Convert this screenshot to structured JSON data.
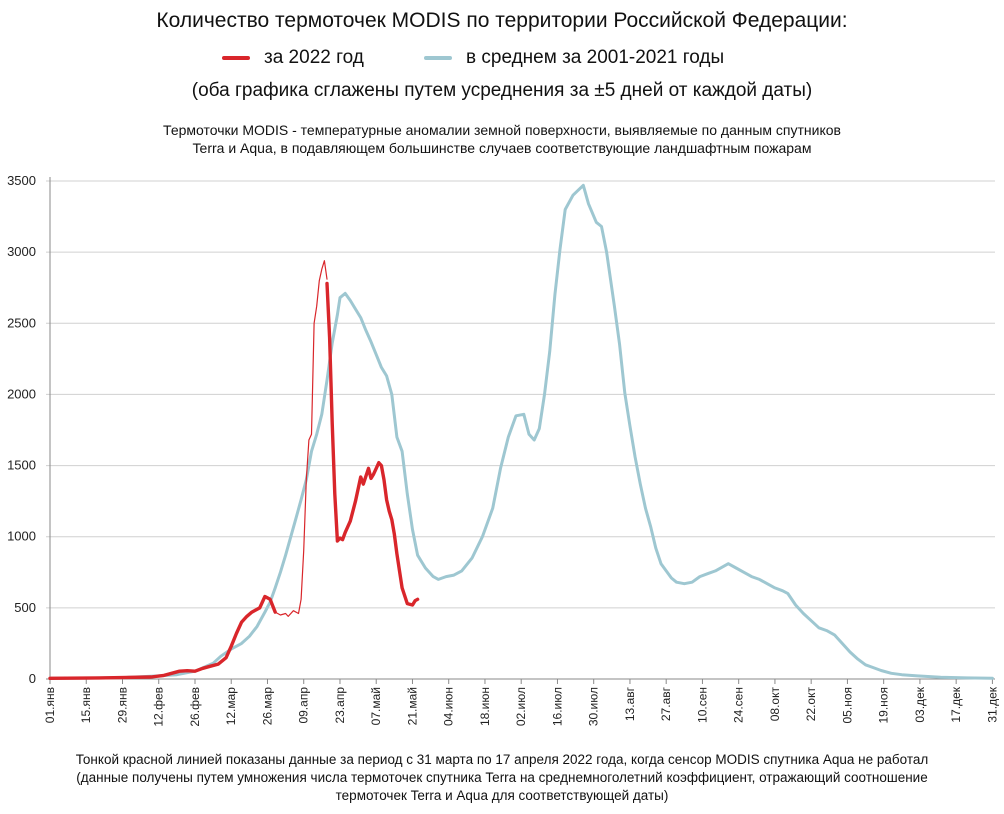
{
  "header": {
    "title": "Количество термоточек MODIS по территории Российской Федерации:",
    "note": "(оба графика сглажены путем усреднения за ±5 дней от каждой даты)",
    "subtitle_line1": "Термоточки MODIS - температурные аномалии земной поверхности, выявляемые по данным спутников",
    "subtitle_line2": "Terra и Aqua, в подавляющем большинстве случаев соответствующие ландшафтным пожарам"
  },
  "footer": {
    "line1": "Тонкой красной линией показаны данные за период с 31 марта по 17 апреля 2022 года, когда сенсор MODIS спутника Aqua не работал",
    "line2": "(данные получены путем умножения числа термоточек спутника Terra на среднемноголетний коэффициент, отражающий соотношение",
    "line3": "термоточек Terra и Aqua для соответствующей даты)"
  },
  "chart_data": {
    "type": "line",
    "ylim": [
      0,
      3500
    ],
    "yticks": [
      0,
      500,
      1000,
      1500,
      2000,
      2500,
      3000,
      3500
    ],
    "x_unit": "day_of_year",
    "xlim": [
      1,
      366
    ],
    "x_ticks": [
      {
        "day": 1,
        "label": "01.янв"
      },
      {
        "day": 15,
        "label": "15.янв"
      },
      {
        "day": 29,
        "label": "29.янв"
      },
      {
        "day": 43,
        "label": "12.фев"
      },
      {
        "day": 57,
        "label": "26.фев"
      },
      {
        "day": 71,
        "label": "12.мар"
      },
      {
        "day": 85,
        "label": "26.мар"
      },
      {
        "day": 99,
        "label": "09.апр"
      },
      {
        "day": 113,
        "label": "23.апр"
      },
      {
        "day": 127,
        "label": "07.май"
      },
      {
        "day": 141,
        "label": "21.май"
      },
      {
        "day": 155,
        "label": "04.июн"
      },
      {
        "day": 169,
        "label": "18.июн"
      },
      {
        "day": 183,
        "label": "02.июл"
      },
      {
        "day": 197,
        "label": "16.июл"
      },
      {
        "day": 211,
        "label": "30.июл"
      },
      {
        "day": 225,
        "label": "13.авг"
      },
      {
        "day": 239,
        "label": "27.авг"
      },
      {
        "day": 253,
        "label": "10.сен"
      },
      {
        "day": 267,
        "label": "24.сен"
      },
      {
        "day": 281,
        "label": "08.окт"
      },
      {
        "day": 295,
        "label": "22.окт"
      },
      {
        "day": 309,
        "label": "05.ноя"
      },
      {
        "day": 323,
        "label": "19.ноя"
      },
      {
        "day": 337,
        "label": "03.дек"
      },
      {
        "day": 351,
        "label": "17.дек"
      },
      {
        "day": 365,
        "label": "31.дек"
      }
    ],
    "legend_position": "top",
    "grid": "horizontal",
    "series": [
      {
        "name": "в среднем за 2001-2021 годы",
        "color": "#9ec7d1",
        "width": 3,
        "points": [
          [
            1,
            5
          ],
          [
            15,
            6
          ],
          [
            29,
            10
          ],
          [
            40,
            20
          ],
          [
            50,
            30
          ],
          [
            57,
            55
          ],
          [
            64,
            110
          ],
          [
            67,
            160
          ],
          [
            71,
            210
          ],
          [
            75,
            250
          ],
          [
            78,
            300
          ],
          [
            81,
            370
          ],
          [
            84,
            470
          ],
          [
            86,
            540
          ],
          [
            88,
            640
          ],
          [
            90,
            750
          ],
          [
            92,
            870
          ],
          [
            94,
            1000
          ],
          [
            96,
            1130
          ],
          [
            98,
            1260
          ],
          [
            100,
            1400
          ],
          [
            102,
            1600
          ],
          [
            104,
            1720
          ],
          [
            106,
            1860
          ],
          [
            108,
            2100
          ],
          [
            110,
            2360
          ],
          [
            112,
            2560
          ],
          [
            113,
            2680
          ],
          [
            115,
            2710
          ],
          [
            117,
            2660
          ],
          [
            119,
            2600
          ],
          [
            121,
            2540
          ],
          [
            123,
            2450
          ],
          [
            125,
            2370
          ],
          [
            127,
            2280
          ],
          [
            129,
            2190
          ],
          [
            131,
            2130
          ],
          [
            133,
            2000
          ],
          [
            135,
            1700
          ],
          [
            137,
            1600
          ],
          [
            139,
            1300
          ],
          [
            141,
            1050
          ],
          [
            143,
            870
          ],
          [
            146,
            780
          ],
          [
            149,
            720
          ],
          [
            151,
            700
          ],
          [
            154,
            720
          ],
          [
            157,
            730
          ],
          [
            160,
            760
          ],
          [
            164,
            850
          ],
          [
            168,
            1000
          ],
          [
            172,
            1200
          ],
          [
            175,
            1480
          ],
          [
            178,
            1700
          ],
          [
            181,
            1850
          ],
          [
            184,
            1860
          ],
          [
            186,
            1720
          ],
          [
            188,
            1680
          ],
          [
            190,
            1760
          ],
          [
            192,
            2000
          ],
          [
            194,
            2300
          ],
          [
            196,
            2700
          ],
          [
            198,
            3020
          ],
          [
            200,
            3300
          ],
          [
            203,
            3400
          ],
          [
            207,
            3470
          ],
          [
            209,
            3340
          ],
          [
            212,
            3210
          ],
          [
            214,
            3180
          ],
          [
            216,
            3000
          ],
          [
            219,
            2620
          ],
          [
            221,
            2350
          ],
          [
            223,
            2010
          ],
          [
            225,
            1780
          ],
          [
            227,
            1560
          ],
          [
            229,
            1370
          ],
          [
            231,
            1200
          ],
          [
            233,
            1070
          ],
          [
            235,
            920
          ],
          [
            237,
            810
          ],
          [
            239,
            760
          ],
          [
            241,
            710
          ],
          [
            243,
            680
          ],
          [
            246,
            670
          ],
          [
            249,
            680
          ],
          [
            252,
            720
          ],
          [
            255,
            740
          ],
          [
            258,
            760
          ],
          [
            261,
            790
          ],
          [
            263,
            810
          ],
          [
            266,
            780
          ],
          [
            269,
            750
          ],
          [
            272,
            720
          ],
          [
            275,
            700
          ],
          [
            278,
            670
          ],
          [
            281,
            640
          ],
          [
            284,
            620
          ],
          [
            286,
            600
          ],
          [
            289,
            520
          ],
          [
            292,
            460
          ],
          [
            295,
            410
          ],
          [
            298,
            360
          ],
          [
            301,
            340
          ],
          [
            304,
            310
          ],
          [
            307,
            250
          ],
          [
            310,
            190
          ],
          [
            313,
            140
          ],
          [
            316,
            100
          ],
          [
            319,
            80
          ],
          [
            322,
            60
          ],
          [
            326,
            40
          ],
          [
            330,
            30
          ],
          [
            336,
            22
          ],
          [
            345,
            12
          ],
          [
            355,
            8
          ],
          [
            365,
            5
          ]
        ]
      },
      {
        "name": "за 2022 год",
        "color": "#d9262b",
        "width": 3.4,
        "points": [
          [
            1,
            5
          ],
          [
            20,
            8
          ],
          [
            40,
            14
          ],
          [
            45,
            25
          ],
          [
            48,
            40
          ],
          [
            51,
            55
          ],
          [
            54,
            58
          ],
          [
            57,
            55
          ],
          [
            60,
            75
          ],
          [
            63,
            90
          ],
          [
            66,
            105
          ],
          [
            69,
            150
          ],
          [
            71,
            230
          ],
          [
            73,
            320
          ],
          [
            75,
            400
          ],
          [
            77,
            440
          ],
          [
            79,
            470
          ],
          [
            82,
            500
          ],
          [
            84,
            580
          ],
          [
            86,
            560
          ],
          [
            88,
            470
          ]
        ]
      },
      {
        "name": "",
        "color": "#d9262b",
        "width": 1.2,
        "points": [
          [
            88,
            470
          ],
          [
            90,
            450
          ],
          [
            92,
            460
          ],
          [
            93,
            440
          ],
          [
            95,
            480
          ],
          [
            97,
            460
          ],
          [
            98,
            560
          ],
          [
            99,
            900
          ],
          [
            100,
            1400
          ],
          [
            101,
            1680
          ],
          [
            102,
            1720
          ],
          [
            103,
            2500
          ],
          [
            104,
            2620
          ],
          [
            105,
            2800
          ],
          [
            106,
            2880
          ],
          [
            107,
            2940
          ],
          [
            108,
            2810
          ]
        ]
      },
      {
        "name": "",
        "color": "#d9262b",
        "width": 3.4,
        "points": [
          [
            108,
            2780
          ],
          [
            109,
            2400
          ],
          [
            110,
            1800
          ],
          [
            111,
            1300
          ],
          [
            112,
            970
          ],
          [
            113,
            990
          ],
          [
            114,
            980
          ],
          [
            115,
            1030
          ],
          [
            117,
            1110
          ],
          [
            119,
            1250
          ],
          [
            121,
            1420
          ],
          [
            122,
            1370
          ],
          [
            124,
            1480
          ],
          [
            125,
            1410
          ],
          [
            126,
            1440
          ],
          [
            127,
            1480
          ],
          [
            128,
            1520
          ],
          [
            129,
            1500
          ],
          [
            130,
            1400
          ],
          [
            131,
            1260
          ],
          [
            132,
            1180
          ],
          [
            133,
            1120
          ],
          [
            134,
            1020
          ],
          [
            135,
            880
          ],
          [
            136,
            760
          ],
          [
            137,
            640
          ],
          [
            139,
            530
          ],
          [
            141,
            520
          ],
          [
            142,
            550
          ],
          [
            143,
            560
          ]
        ]
      }
    ]
  }
}
